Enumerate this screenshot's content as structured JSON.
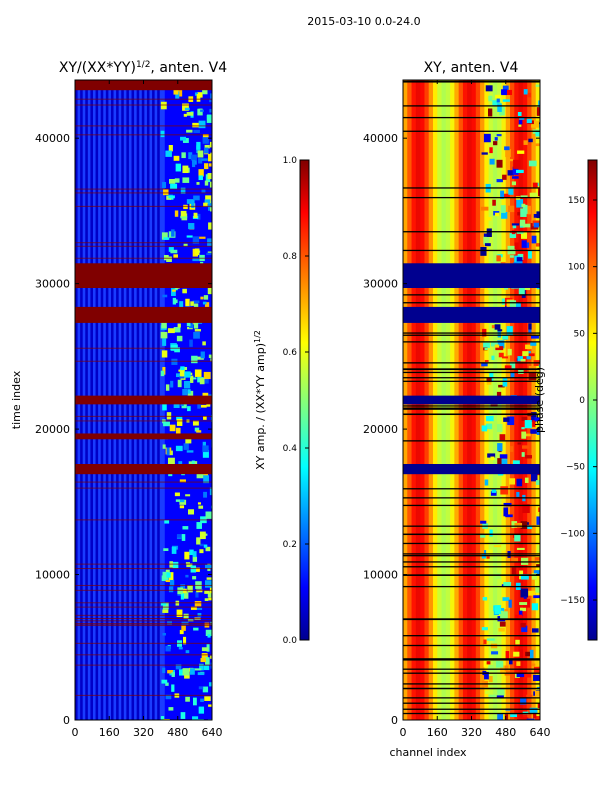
{
  "figure_title": "2015-03-10 0.0-24.0",
  "chart_data": [
    {
      "type": "heatmap",
      "title": "XY/(XX*YY)^{1/2}, anten. V4",
      "title_main": "XY/(XX*YY)",
      "title_sup": "1/2",
      "title_tail": ", anten. V4",
      "xlabel": "",
      "ylabel": "time index",
      "xlim": [
        0,
        640
      ],
      "ylim": [
        0,
        44000
      ],
      "xticks": [
        0,
        160,
        320,
        480,
        640
      ],
      "yticks": [
        0,
        10000,
        20000,
        30000,
        40000
      ],
      "colorbar": {
        "label": "XY amp. / (XX*YY amp)^{1/2}",
        "label_main": "XY amp. / (XX*YY amp)",
        "label_sup": "1/2",
        "range": [
          0.0,
          1.0
        ],
        "ticks": [
          0.0,
          0.2,
          0.4,
          0.6,
          0.8,
          1.0
        ],
        "tick_labels": [
          "0.0",
          "0.2",
          "0.4",
          "0.6",
          "0.8",
          "1.0"
        ],
        "colormap": "jet"
      },
      "flagged_time_ranges": [
        [
          43300,
          44000
        ],
        [
          31400,
          29700
        ],
        [
          28400,
          27300
        ],
        [
          22300,
          21700
        ],
        [
          19700,
          19300
        ],
        [
          17600,
          16900
        ]
      ],
      "high_value_channels": [
        400,
        640
      ]
    },
    {
      "type": "heatmap",
      "title": "XY, anten. V4",
      "xlabel": "channel index",
      "ylabel": "",
      "xlim": [
        0,
        640
      ],
      "ylim": [
        0,
        44000
      ],
      "xticks": [
        0,
        160,
        320,
        480,
        640
      ],
      "yticks": [
        0,
        10000,
        20000,
        30000,
        40000
      ],
      "colorbar": {
        "label": "phase (deg)",
        "range": [
          -180,
          180
        ],
        "ticks": [
          -150,
          -100,
          -50,
          0,
          50,
          100,
          150
        ],
        "tick_labels": [
          "−150",
          "−100",
          "−50",
          "0",
          "50",
          "100",
          "150"
        ],
        "colormap": "jet"
      },
      "flagged_time_ranges": [
        [
          31400,
          29700
        ],
        [
          28400,
          27300
        ],
        [
          22300,
          21700
        ],
        [
          17600,
          16900
        ]
      ]
    }
  ],
  "colors": {
    "jet_dark_blue": "#00008f",
    "jet_blue": "#0000ff",
    "jet_cyan": "#00ffff",
    "jet_yellow": "#ffff00",
    "jet_red": "#ff0000",
    "jet_dark_red": "#800000"
  }
}
